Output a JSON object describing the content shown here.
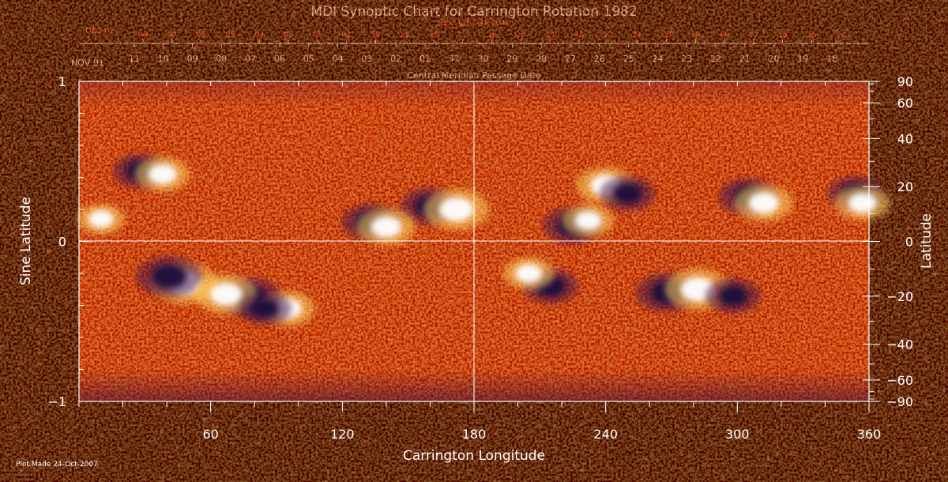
{
  "chart_data": {
    "type": "heatmap",
    "title": "MDI Synoptic Chart for Carrington Rotation 1982",
    "xlabel": "Carrington Longitude",
    "ylabel_left": "Sine Latitude",
    "ylabel_right": "Latitude",
    "xlim": [
      0,
      360
    ],
    "ylim_sine": [
      -1,
      1
    ],
    "x_ticks": [
      "60",
      "120",
      "180",
      "240",
      "300",
      "360"
    ],
    "x_tick_values": [
      60,
      120,
      180,
      240,
      300,
      360
    ],
    "left_ticks": [
      {
        "label": "1",
        "value": 1
      },
      {
        "label": "0",
        "value": 0
      },
      {
        "label": "−1",
        "value": -1
      }
    ],
    "right_ticks": [
      {
        "label": "90",
        "deg": 90
      },
      {
        "label": "60",
        "deg": 60
      },
      {
        "label": "40",
        "deg": 40
      },
      {
        "label": "20",
        "deg": 20
      },
      {
        "label": "0",
        "deg": 0
      },
      {
        "label": "−20",
        "deg": -20
      },
      {
        "label": "−40",
        "deg": -40
      },
      {
        "label": "−60",
        "deg": -60
      },
      {
        "label": "−90",
        "deg": -90
      }
    ],
    "cmp_axis_caption": "Central Meridian Passage Date",
    "cmp_first_label": "NOV 01",
    "cmp_dates": [
      "11",
      "10",
      "09",
      "08",
      "07",
      "06",
      "05",
      "04",
      "03",
      "02",
      "01",
      "31",
      "30",
      "29",
      "28",
      "27",
      "26",
      "25",
      "24",
      "23",
      "22",
      "21",
      "20",
      "19",
      "18"
    ],
    "next_cr_caption": "Next CR CMP Date",
    "next_cr_first_label": "DEC 01",
    "next_cr_dates": [
      "08",
      "07",
      "06",
      "05",
      "04",
      "03",
      "02",
      "01",
      "30",
      "29",
      "28",
      "27",
      "26",
      "25",
      "24",
      "23",
      "22",
      "21",
      "20",
      "19",
      "18",
      "17",
      "16",
      "15",
      "14"
    ],
    "colors": {
      "background": "#000000",
      "field_base": "#e8420c",
      "field_mid": "#ff8a1e",
      "field_strong_positive": "#ffffff",
      "field_strong_negative": "#1a0a3a",
      "date_red": "#ff4e1c",
      "crosshair": "#ffffff"
    },
    "active_regions": [
      {
        "lon": 48,
        "lat_sine": -0.26,
        "polarity": "positive",
        "strength": 1.0
      },
      {
        "lon": 41,
        "lat_sine": -0.22,
        "polarity": "negative",
        "strength": 1.0
      },
      {
        "lon": 78,
        "lat_sine": -0.35,
        "polarity": "negative",
        "strength": 0.9
      },
      {
        "lon": 67,
        "lat_sine": -0.33,
        "polarity": "positive",
        "strength": 0.9
      },
      {
        "lon": 95,
        "lat_sine": -0.42,
        "polarity": "positive",
        "strength": 0.7
      },
      {
        "lon": 85,
        "lat_sine": -0.42,
        "polarity": "negative",
        "strength": 0.6
      },
      {
        "lon": 160,
        "lat_sine": 0.22,
        "polarity": "negative",
        "strength": 0.8
      },
      {
        "lon": 172,
        "lat_sine": 0.2,
        "polarity": "positive",
        "strength": 1.0
      },
      {
        "lon": 133,
        "lat_sine": 0.12,
        "polarity": "negative",
        "strength": 0.8
      },
      {
        "lon": 140,
        "lat_sine": 0.09,
        "polarity": "positive",
        "strength": 0.8
      },
      {
        "lon": 28,
        "lat_sine": 0.44,
        "polarity": "negative",
        "strength": 0.7
      },
      {
        "lon": 38,
        "lat_sine": 0.42,
        "polarity": "positive",
        "strength": 0.7
      },
      {
        "lon": 225,
        "lat_sine": 0.1,
        "polarity": "negative",
        "strength": 0.8
      },
      {
        "lon": 232,
        "lat_sine": 0.13,
        "polarity": "positive",
        "strength": 0.6
      },
      {
        "lon": 240,
        "lat_sine": 0.35,
        "polarity": "positive",
        "strength": 0.8
      },
      {
        "lon": 250,
        "lat_sine": 0.3,
        "polarity": "negative",
        "strength": 0.7
      },
      {
        "lon": 305,
        "lat_sine": 0.28,
        "polarity": "negative",
        "strength": 0.8
      },
      {
        "lon": 312,
        "lat_sine": 0.24,
        "polarity": "positive",
        "strength": 0.8
      },
      {
        "lon": 354,
        "lat_sine": 0.3,
        "polarity": "negative",
        "strength": 0.7
      },
      {
        "lon": 357,
        "lat_sine": 0.24,
        "polarity": "positive",
        "strength": 0.7
      },
      {
        "lon": 268,
        "lat_sine": -0.32,
        "polarity": "negative",
        "strength": 0.9
      },
      {
        "lon": 282,
        "lat_sine": -0.3,
        "polarity": "positive",
        "strength": 1.0
      },
      {
        "lon": 298,
        "lat_sine": -0.34,
        "polarity": "negative",
        "strength": 0.7
      },
      {
        "lon": 215,
        "lat_sine": -0.28,
        "polarity": "negative",
        "strength": 0.7
      },
      {
        "lon": 205,
        "lat_sine": -0.2,
        "polarity": "positive",
        "strength": 0.6
      },
      {
        "lon": 10,
        "lat_sine": 0.14,
        "polarity": "positive",
        "strength": 0.5
      }
    ]
  },
  "footer": {
    "plot_made": "Plot Made 24-Oct-2007"
  }
}
